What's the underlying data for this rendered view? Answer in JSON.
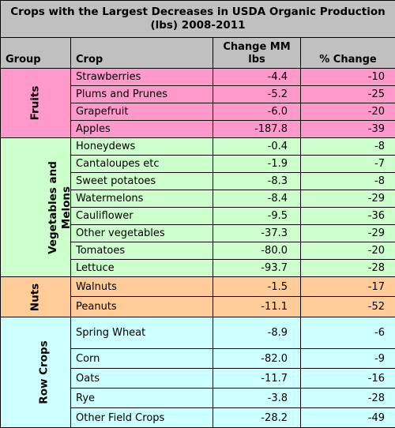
{
  "title": "Crops with the Largest Decreases in USDA Organic Production (lbs) 2008-2011",
  "columns": {
    "group": "Group",
    "crop": "Crop",
    "change": "Change MM lbs",
    "pct": "% Change"
  },
  "groups": [
    {
      "label": "Fruits",
      "color": "#ff99cc",
      "rows": [
        {
          "crop": "Strawberries",
          "change": "-4.4",
          "pct": "-10"
        },
        {
          "crop": "Plums and Prunes",
          "change": "-5.2",
          "pct": "-25"
        },
        {
          "crop": "Grapefruit",
          "change": "-6.0",
          "pct": "-20"
        },
        {
          "crop": "Apples",
          "change": "-187.8",
          "pct": "-39"
        }
      ]
    },
    {
      "label": "Vegetables and Melons",
      "color": "#ccffcc",
      "rows": [
        {
          "crop": "Honeydews",
          "change": "-0.4",
          "pct": "-8"
        },
        {
          "crop": "Cantaloupes etc",
          "change": "-1.9",
          "pct": "-7"
        },
        {
          "crop": "Sweet potatoes",
          "change": "-8.3",
          "pct": "-8"
        },
        {
          "crop": "Watermelons",
          "change": "-8.4",
          "pct": "-29"
        },
        {
          "crop": "Cauliflower",
          "change": "-9.5",
          "pct": "-36"
        },
        {
          "crop": "Other vegetables",
          "change": "-37.3",
          "pct": "-29"
        },
        {
          "crop": "Tomatoes",
          "change": "-80.0",
          "pct": "-20"
        },
        {
          "crop": "Lettuce",
          "change": "-93.7",
          "pct": "-28"
        }
      ]
    },
    {
      "label": "Nuts",
      "color": "#ffcc99",
      "rows": [
        {
          "crop": "Walnuts",
          "change": "-1.5",
          "pct": "-17"
        },
        {
          "crop": "Peanuts",
          "change": "-11.1",
          "pct": "-52"
        }
      ]
    },
    {
      "label": "Row Crops",
      "color": "#ccffff",
      "rows": [
        {
          "crop": "Spring Wheat",
          "change": "-8.9",
          "pct": "-6"
        },
        {
          "crop": "Corn",
          "change": "-82.0",
          "pct": "-9"
        },
        {
          "crop": "Oats",
          "change": "-11.7",
          "pct": "-16"
        },
        {
          "crop": "Rye",
          "change": "-3.8",
          "pct": "-28"
        },
        {
          "crop": "Other Field Crops",
          "change": "-28.2",
          "pct": "-49"
        }
      ]
    }
  ]
}
